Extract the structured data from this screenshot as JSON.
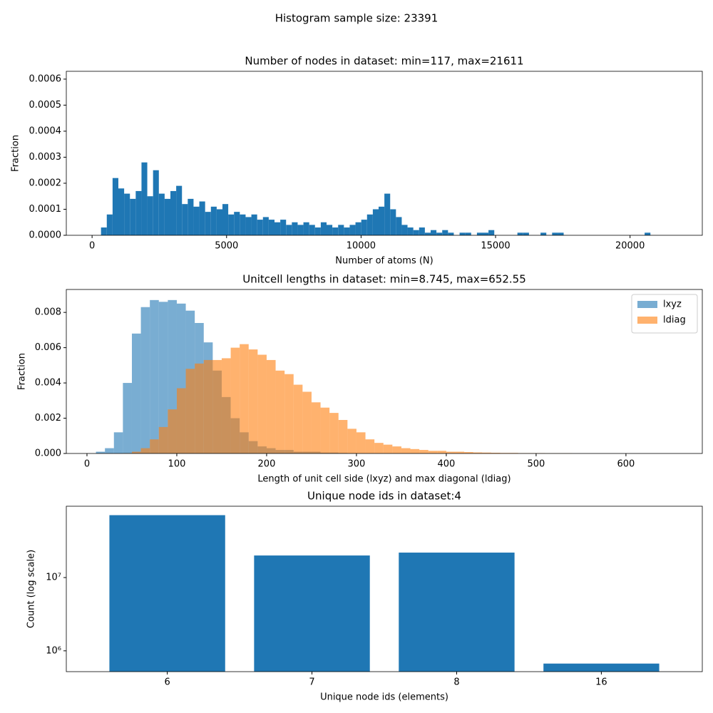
{
  "title": "Histogram sample size: 23391",
  "chart_data": [
    {
      "type": "histogram",
      "title": "Number of nodes in dataset: min=117, max=21611",
      "xlabel": "Number of atoms (N)",
      "ylabel": "Fraction",
      "color": "#1f77b4",
      "bins": [
        117,
        332,
        547,
        762,
        977,
        1192,
        1407,
        1622,
        1837,
        2052,
        2267,
        2482,
        2697,
        2912,
        3127,
        3342,
        3557,
        3772,
        3987,
        4202,
        4417,
        4632,
        4847,
        5062,
        5277,
        5492,
        5707,
        5922,
        6137,
        6352,
        6567,
        6782,
        6997,
        7212,
        7427,
        7642,
        7857,
        8072,
        8287,
        8502,
        8717,
        8932,
        9147,
        9362,
        9577,
        9792,
        10007,
        10222,
        10437,
        10652,
        10867,
        11082,
        11297,
        11512,
        11727,
        11942,
        12157,
        12372,
        12587,
        12802,
        13017,
        13232,
        13447,
        13662,
        13877,
        14092,
        14307,
        14522,
        14737,
        14952,
        15167,
        15382,
        15597,
        15812,
        16027,
        16242,
        16457,
        16672,
        16887,
        17102,
        17317,
        17532,
        17747,
        17962,
        18177,
        18392,
        18607,
        18822,
        19037,
        19252,
        19467,
        19682,
        19897,
        20112,
        20327,
        20542,
        20757,
        20972,
        21187,
        21402,
        21611
      ],
      "values": [
        0,
        3e-05,
        8e-05,
        0.00022,
        0.00018,
        0.00016,
        0.00014,
        0.00017,
        0.00028,
        0.00015,
        0.00025,
        0.00016,
        0.00014,
        0.00017,
        0.00019,
        0.00012,
        0.00014,
        0.00011,
        0.00013,
        9e-05,
        0.00011,
        0.0001,
        0.00012,
        8e-05,
        9e-05,
        8e-05,
        7e-05,
        8e-05,
        6e-05,
        7e-05,
        6e-05,
        5e-05,
        6e-05,
        4e-05,
        5e-05,
        4e-05,
        5e-05,
        4e-05,
        3e-05,
        5e-05,
        4e-05,
        3e-05,
        4e-05,
        3e-05,
        4e-05,
        5e-05,
        6e-05,
        8e-05,
        0.0001,
        0.00011,
        0.00016,
        0.0001,
        7e-05,
        4e-05,
        3e-05,
        2e-05,
        3e-05,
        1e-05,
        2e-05,
        1e-05,
        2e-05,
        1e-05,
        0,
        1e-05,
        1e-05,
        0,
        1e-05,
        1e-05,
        2e-05,
        0,
        0,
        0,
        0,
        1e-05,
        1e-05,
        0,
        0,
        1e-05,
        0,
        1e-05,
        1e-05,
        0,
        0,
        0,
        0,
        0,
        0,
        0,
        0,
        0,
        0,
        0,
        0,
        0,
        0,
        1e-05,
        0,
        0,
        0,
        0
      ],
      "xlim": [
        -958,
        22686
      ],
      "xticks": [
        0,
        5000,
        10000,
        15000,
        20000
      ],
      "ylim": [
        0,
        0.00063
      ],
      "yticks": [
        {
          "value": 0,
          "label": "0.0000"
        },
        {
          "value": 0.0001,
          "label": "0.0001"
        },
        {
          "value": 0.0002,
          "label": "0.0002"
        },
        {
          "value": 0.0003,
          "label": "0.0003"
        },
        {
          "value": 0.0004,
          "label": "0.0004"
        },
        {
          "value": 0.0005,
          "label": "0.0005"
        },
        {
          "value": 0.0006,
          "label": "0.0006"
        }
      ]
    },
    {
      "type": "histogram",
      "title": "Unitcell lengths in dataset: min=8.745, max=652.55",
      "xlabel": "Length of unit cell side (lxyz) and max diagonal (ldiag)",
      "ylabel": "Fraction",
      "alpha": 0.6,
      "legend": "upper right",
      "bins": [
        0,
        10,
        20,
        30,
        40,
        50,
        60,
        70,
        80,
        90,
        100,
        110,
        120,
        130,
        140,
        150,
        160,
        170,
        180,
        190,
        200,
        210,
        220,
        230,
        240,
        250,
        260,
        270,
        280,
        290,
        300,
        310,
        320,
        330,
        340,
        350,
        360,
        370,
        380,
        390,
        400,
        410,
        420,
        430,
        440,
        450,
        460,
        470,
        480,
        490,
        500,
        510,
        520,
        530,
        540,
        550
      ],
      "series": [
        {
          "name": "lxyz",
          "color": "#1f77b4",
          "values": [
            0,
            0.0001,
            0.0003,
            0.0012,
            0.004,
            0.0068,
            0.0083,
            0.0087,
            0.0086,
            0.0087,
            0.0085,
            0.0081,
            0.0074,
            0.0063,
            0.0047,
            0.0032,
            0.002,
            0.0012,
            0.0007,
            0.0004,
            0.0003,
            0.0002,
            0.0002,
            0.0001,
            0.0001,
            0.0001,
            5e-05,
            5e-05,
            3e-05,
            2e-05,
            0,
            0,
            0,
            0,
            0,
            0,
            0,
            0,
            0,
            0,
            0,
            0,
            0,
            0,
            0,
            0,
            0,
            0,
            0,
            0,
            0,
            0,
            0,
            0,
            0
          ]
        },
        {
          "name": "ldiag",
          "color": "#ff7f0e",
          "values": [
            0,
            0,
            0,
            0,
            2e-05,
            0.0001,
            0.0003,
            0.0008,
            0.0015,
            0.0025,
            0.0037,
            0.0048,
            0.0051,
            0.0053,
            0.0053,
            0.0054,
            0.006,
            0.0062,
            0.0059,
            0.0056,
            0.0053,
            0.0047,
            0.0045,
            0.0039,
            0.0035,
            0.0029,
            0.0026,
            0.0023,
            0.0019,
            0.0014,
            0.0012,
            0.0008,
            0.0006,
            0.0005,
            0.0004,
            0.0003,
            0.00025,
            0.0002,
            0.00015,
            0.00015,
            0.0001,
            0.0001,
            8e-05,
            6e-05,
            5e-05,
            4e-05,
            3e-05,
            3e-05,
            2e-05,
            2e-05,
            2e-05,
            1e-05,
            1e-05,
            1e-05,
            0
          ]
        }
      ],
      "xlim": [
        -23,
        685
      ],
      "xticks": [
        0,
        100,
        200,
        300,
        400,
        500,
        600
      ],
      "ylim": [
        0,
        0.0093
      ],
      "yticks": [
        {
          "value": 0,
          "label": "0.000"
        },
        {
          "value": 0.002,
          "label": "0.002"
        },
        {
          "value": 0.004,
          "label": "0.004"
        },
        {
          "value": 0.006,
          "label": "0.006"
        },
        {
          "value": 0.008,
          "label": "0.008"
        }
      ]
    },
    {
      "type": "bar",
      "title": "Unique node ids in dataset:4",
      "xlabel": "Unique node ids (elements)",
      "ylabel": "Count (log scale)",
      "color": "#1f77b4",
      "yscale": "log",
      "categories": [
        "6",
        "7",
        "8",
        "16"
      ],
      "values": [
        71000000,
        20000000,
        21900000,
        670000
      ],
      "ylim": [
        520000,
        94000000
      ],
      "yticks": [
        {
          "value": 1000000,
          "label": "10⁶"
        },
        {
          "value": 10000000,
          "label": "10⁷"
        }
      ]
    }
  ]
}
